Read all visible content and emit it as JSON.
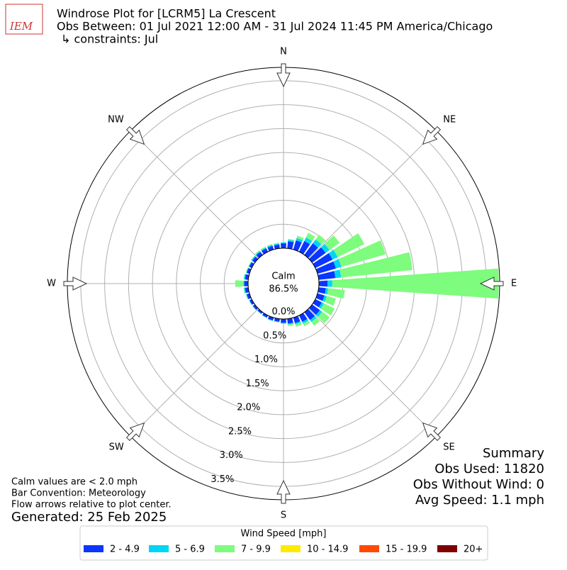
{
  "chart_data": {
    "type": "windrose",
    "title": "Windrose Plot for [LCRM5] La Crescent",
    "subtitle": "Obs Between: 01 Jul 2021 12:00 AM - 31 Jul 2024 11:45 PM America/Chicago",
    "constraints": "↳ constraints: Jul",
    "logo_text": "IEM",
    "calm_label": "Calm",
    "calm_value": "86.5%",
    "directions": [
      "N",
      "NE",
      "E",
      "SE",
      "S",
      "SW",
      "W",
      "NW"
    ],
    "x": [
      0,
      10,
      20,
      30,
      40,
      50,
      60,
      70,
      80,
      90,
      100,
      110,
      120,
      130,
      140,
      150,
      160,
      170,
      180,
      190,
      200,
      210,
      220,
      230,
      240,
      250,
      260,
      270,
      280,
      290,
      300,
      310,
      320,
      330,
      340,
      350
    ],
    "ylim": [
      0,
      3.78
    ],
    "yticks": [
      {
        "value": 0,
        "label": "0.0%"
      },
      {
        "value": 0.5,
        "label": "0.5%"
      },
      {
        "value": 1,
        "label": "1.0%"
      },
      {
        "value": 1.5,
        "label": "1.5%"
      },
      {
        "value": 2,
        "label": "2.0%"
      },
      {
        "value": 2.5,
        "label": "2.5%"
      },
      {
        "value": 3,
        "label": "3.0%"
      },
      {
        "value": 3.5,
        "label": "3.5%"
      }
    ],
    "legend_title": "Wind Speed [mph]",
    "series": [
      {
        "name": "2 - 4.9",
        "color": "#0a36ff",
        "values": [
          0.1,
          0.15,
          0.2,
          0.25,
          0.3,
          0.35,
          0.4,
          0.4,
          0.35,
          0.18,
          0.15,
          0.15,
          0.15,
          0.2,
          0.2,
          0.15,
          0.12,
          0.1,
          0.08,
          0.06,
          0.06,
          0.05,
          0.04,
          0.05,
          0.05,
          0.06,
          0.07,
          0.08,
          0.07,
          0.06,
          0.06,
          0.07,
          0.08,
          0.08,
          0.08,
          0.08
        ]
      },
      {
        "name": "5 - 6.9",
        "color": "#00d5f5",
        "values": [
          0.02,
          0.03,
          0.05,
          0.08,
          0.1,
          0.1,
          0.12,
          0.12,
          0.12,
          0.1,
          0.05,
          0.05,
          0.05,
          0.06,
          0.05,
          0.04,
          0.03,
          0.02,
          0.01,
          0.01,
          0.01,
          0.01,
          0.01,
          0.01,
          0.01,
          0.01,
          0.02,
          0.02,
          0.02,
          0.01,
          0.01,
          0.02,
          0.02,
          0.02,
          0.02,
          0.02
        ]
      },
      {
        "name": "7 - 9.9",
        "color": "#7dfc7d",
        "values": [
          0,
          0.02,
          0.05,
          0.11,
          0.12,
          0.26,
          0.62,
          0.96,
          1.5,
          3.48,
          0.35,
          0.2,
          0.25,
          0.19,
          0.1,
          0.06,
          0.05,
          0.03,
          0.01,
          0.01,
          0.01,
          0,
          0,
          0,
          0,
          0.01,
          0.01,
          0.17,
          0.01,
          0.01,
          0.01,
          0.01,
          0.02,
          0.02,
          0.02,
          0.02
        ]
      },
      {
        "name": "10 - 14.9",
        "color": "#ffea00",
        "values": [
          0,
          0,
          0,
          0,
          0,
          0,
          0,
          0,
          0,
          0,
          0,
          0,
          0,
          0,
          0,
          0,
          0,
          0,
          0,
          0,
          0,
          0,
          0,
          0,
          0,
          0,
          0,
          0,
          0,
          0,
          0,
          0,
          0,
          0,
          0,
          0
        ]
      },
      {
        "name": "15 - 19.9",
        "color": "#ff4a00",
        "values": [
          0,
          0,
          0,
          0,
          0,
          0,
          0,
          0,
          0,
          0,
          0,
          0,
          0,
          0,
          0,
          0,
          0,
          0,
          0,
          0,
          0,
          0,
          0,
          0,
          0,
          0,
          0,
          0,
          0,
          0,
          0,
          0,
          0,
          0,
          0,
          0
        ]
      },
      {
        "name": "20+",
        "color": "#800000",
        "values": [
          0,
          0,
          0,
          0,
          0,
          0,
          0,
          0,
          0,
          0,
          0,
          0,
          0,
          0,
          0,
          0,
          0,
          0,
          0,
          0,
          0,
          0,
          0,
          0,
          0,
          0,
          0,
          0,
          0,
          0,
          0,
          0,
          0,
          0,
          0,
          0
        ]
      }
    ],
    "grid": true,
    "summary": [
      "Summary",
      "Obs Used: 11820",
      "Obs Without Wind: 0",
      "Avg Speed: 1.1 mph"
    ],
    "notes": [
      "Calm values are < 2.0 mph",
      "Bar Convention: Meteorology",
      "Flow arrows relative to plot center."
    ],
    "generated": "Generated: 25 Feb 2025"
  }
}
